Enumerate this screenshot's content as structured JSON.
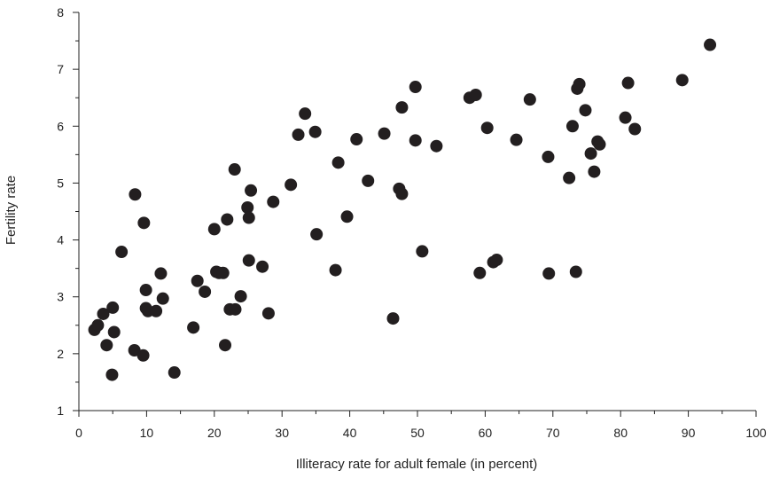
{
  "chart_data": {
    "type": "scatter",
    "title": "",
    "xlabel": "Illiteracy rate for adult female (in percent)",
    "ylabel": "Fertility rate",
    "xlim": [
      0,
      100
    ],
    "ylim": [
      1,
      8
    ],
    "x_ticks": [
      0,
      10,
      20,
      30,
      40,
      50,
      60,
      70,
      80,
      90,
      100
    ],
    "y_ticks": [
      1,
      2,
      3,
      4,
      5,
      6,
      7,
      8
    ],
    "grid": false,
    "legend": "none",
    "marker_color": "#231f20",
    "points": [
      {
        "x": 2.3,
        "y": 2.42
      },
      {
        "x": 2.8,
        "y": 2.5
      },
      {
        "x": 3.6,
        "y": 2.7
      },
      {
        "x": 4.1,
        "y": 2.15
      },
      {
        "x": 4.9,
        "y": 1.63
      },
      {
        "x": 5.0,
        "y": 2.81
      },
      {
        "x": 5.2,
        "y": 2.38
      },
      {
        "x": 6.3,
        "y": 3.79
      },
      {
        "x": 8.2,
        "y": 2.06
      },
      {
        "x": 8.3,
        "y": 4.8
      },
      {
        "x": 9.5,
        "y": 1.97
      },
      {
        "x": 9.6,
        "y": 4.3
      },
      {
        "x": 9.9,
        "y": 3.12
      },
      {
        "x": 9.9,
        "y": 2.8
      },
      {
        "x": 10.2,
        "y": 2.75
      },
      {
        "x": 11.4,
        "y": 2.75
      },
      {
        "x": 12.1,
        "y": 3.41
      },
      {
        "x": 12.4,
        "y": 2.97
      },
      {
        "x": 14.1,
        "y": 1.67
      },
      {
        "x": 16.9,
        "y": 2.46
      },
      {
        "x": 17.5,
        "y": 3.28
      },
      {
        "x": 18.6,
        "y": 3.09
      },
      {
        "x": 20.0,
        "y": 4.19
      },
      {
        "x": 20.3,
        "y": 3.44
      },
      {
        "x": 20.7,
        "y": 3.42
      },
      {
        "x": 21.3,
        "y": 3.42
      },
      {
        "x": 21.6,
        "y": 2.15
      },
      {
        "x": 21.9,
        "y": 4.36
      },
      {
        "x": 22.3,
        "y": 2.78
      },
      {
        "x": 23.0,
        "y": 5.24
      },
      {
        "x": 23.1,
        "y": 2.78
      },
      {
        "x": 23.9,
        "y": 3.01
      },
      {
        "x": 24.9,
        "y": 4.57
      },
      {
        "x": 25.1,
        "y": 4.39
      },
      {
        "x": 25.1,
        "y": 3.64
      },
      {
        "x": 25.4,
        "y": 4.87
      },
      {
        "x": 27.1,
        "y": 3.53
      },
      {
        "x": 28.0,
        "y": 2.71
      },
      {
        "x": 28.7,
        "y": 4.67
      },
      {
        "x": 31.3,
        "y": 4.97
      },
      {
        "x": 32.4,
        "y": 5.85
      },
      {
        "x": 33.4,
        "y": 6.22
      },
      {
        "x": 34.9,
        "y": 5.9
      },
      {
        "x": 35.1,
        "y": 4.1
      },
      {
        "x": 37.9,
        "y": 3.47
      },
      {
        "x": 38.3,
        "y": 5.36
      },
      {
        "x": 39.6,
        "y": 4.41
      },
      {
        "x": 41.0,
        "y": 5.77
      },
      {
        "x": 42.7,
        "y": 5.04
      },
      {
        "x": 45.1,
        "y": 5.87
      },
      {
        "x": 46.4,
        "y": 2.62
      },
      {
        "x": 47.3,
        "y": 4.9
      },
      {
        "x": 47.7,
        "y": 4.81
      },
      {
        "x": 47.7,
        "y": 6.33
      },
      {
        "x": 49.7,
        "y": 6.69
      },
      {
        "x": 49.7,
        "y": 5.75
      },
      {
        "x": 50.7,
        "y": 3.8
      },
      {
        "x": 52.8,
        "y": 5.65
      },
      {
        "x": 57.7,
        "y": 6.5
      },
      {
        "x": 58.6,
        "y": 6.55
      },
      {
        "x": 59.2,
        "y": 3.42
      },
      {
        "x": 60.3,
        "y": 5.97
      },
      {
        "x": 61.2,
        "y": 3.61
      },
      {
        "x": 61.7,
        "y": 3.65
      },
      {
        "x": 64.6,
        "y": 5.76
      },
      {
        "x": 66.6,
        "y": 6.47
      },
      {
        "x": 69.3,
        "y": 5.46
      },
      {
        "x": 69.4,
        "y": 3.41
      },
      {
        "x": 72.4,
        "y": 5.09
      },
      {
        "x": 72.9,
        "y": 6.0
      },
      {
        "x": 73.4,
        "y": 3.44
      },
      {
        "x": 73.6,
        "y": 6.66
      },
      {
        "x": 73.9,
        "y": 6.74
      },
      {
        "x": 74.8,
        "y": 6.28
      },
      {
        "x": 75.6,
        "y": 5.52
      },
      {
        "x": 76.1,
        "y": 5.2
      },
      {
        "x": 76.6,
        "y": 5.73
      },
      {
        "x": 76.9,
        "y": 5.68
      },
      {
        "x": 80.7,
        "y": 6.15
      },
      {
        "x": 81.1,
        "y": 6.76
      },
      {
        "x": 82.1,
        "y": 5.95
      },
      {
        "x": 89.1,
        "y": 6.81
      },
      {
        "x": 93.2,
        "y": 7.43
      }
    ]
  }
}
